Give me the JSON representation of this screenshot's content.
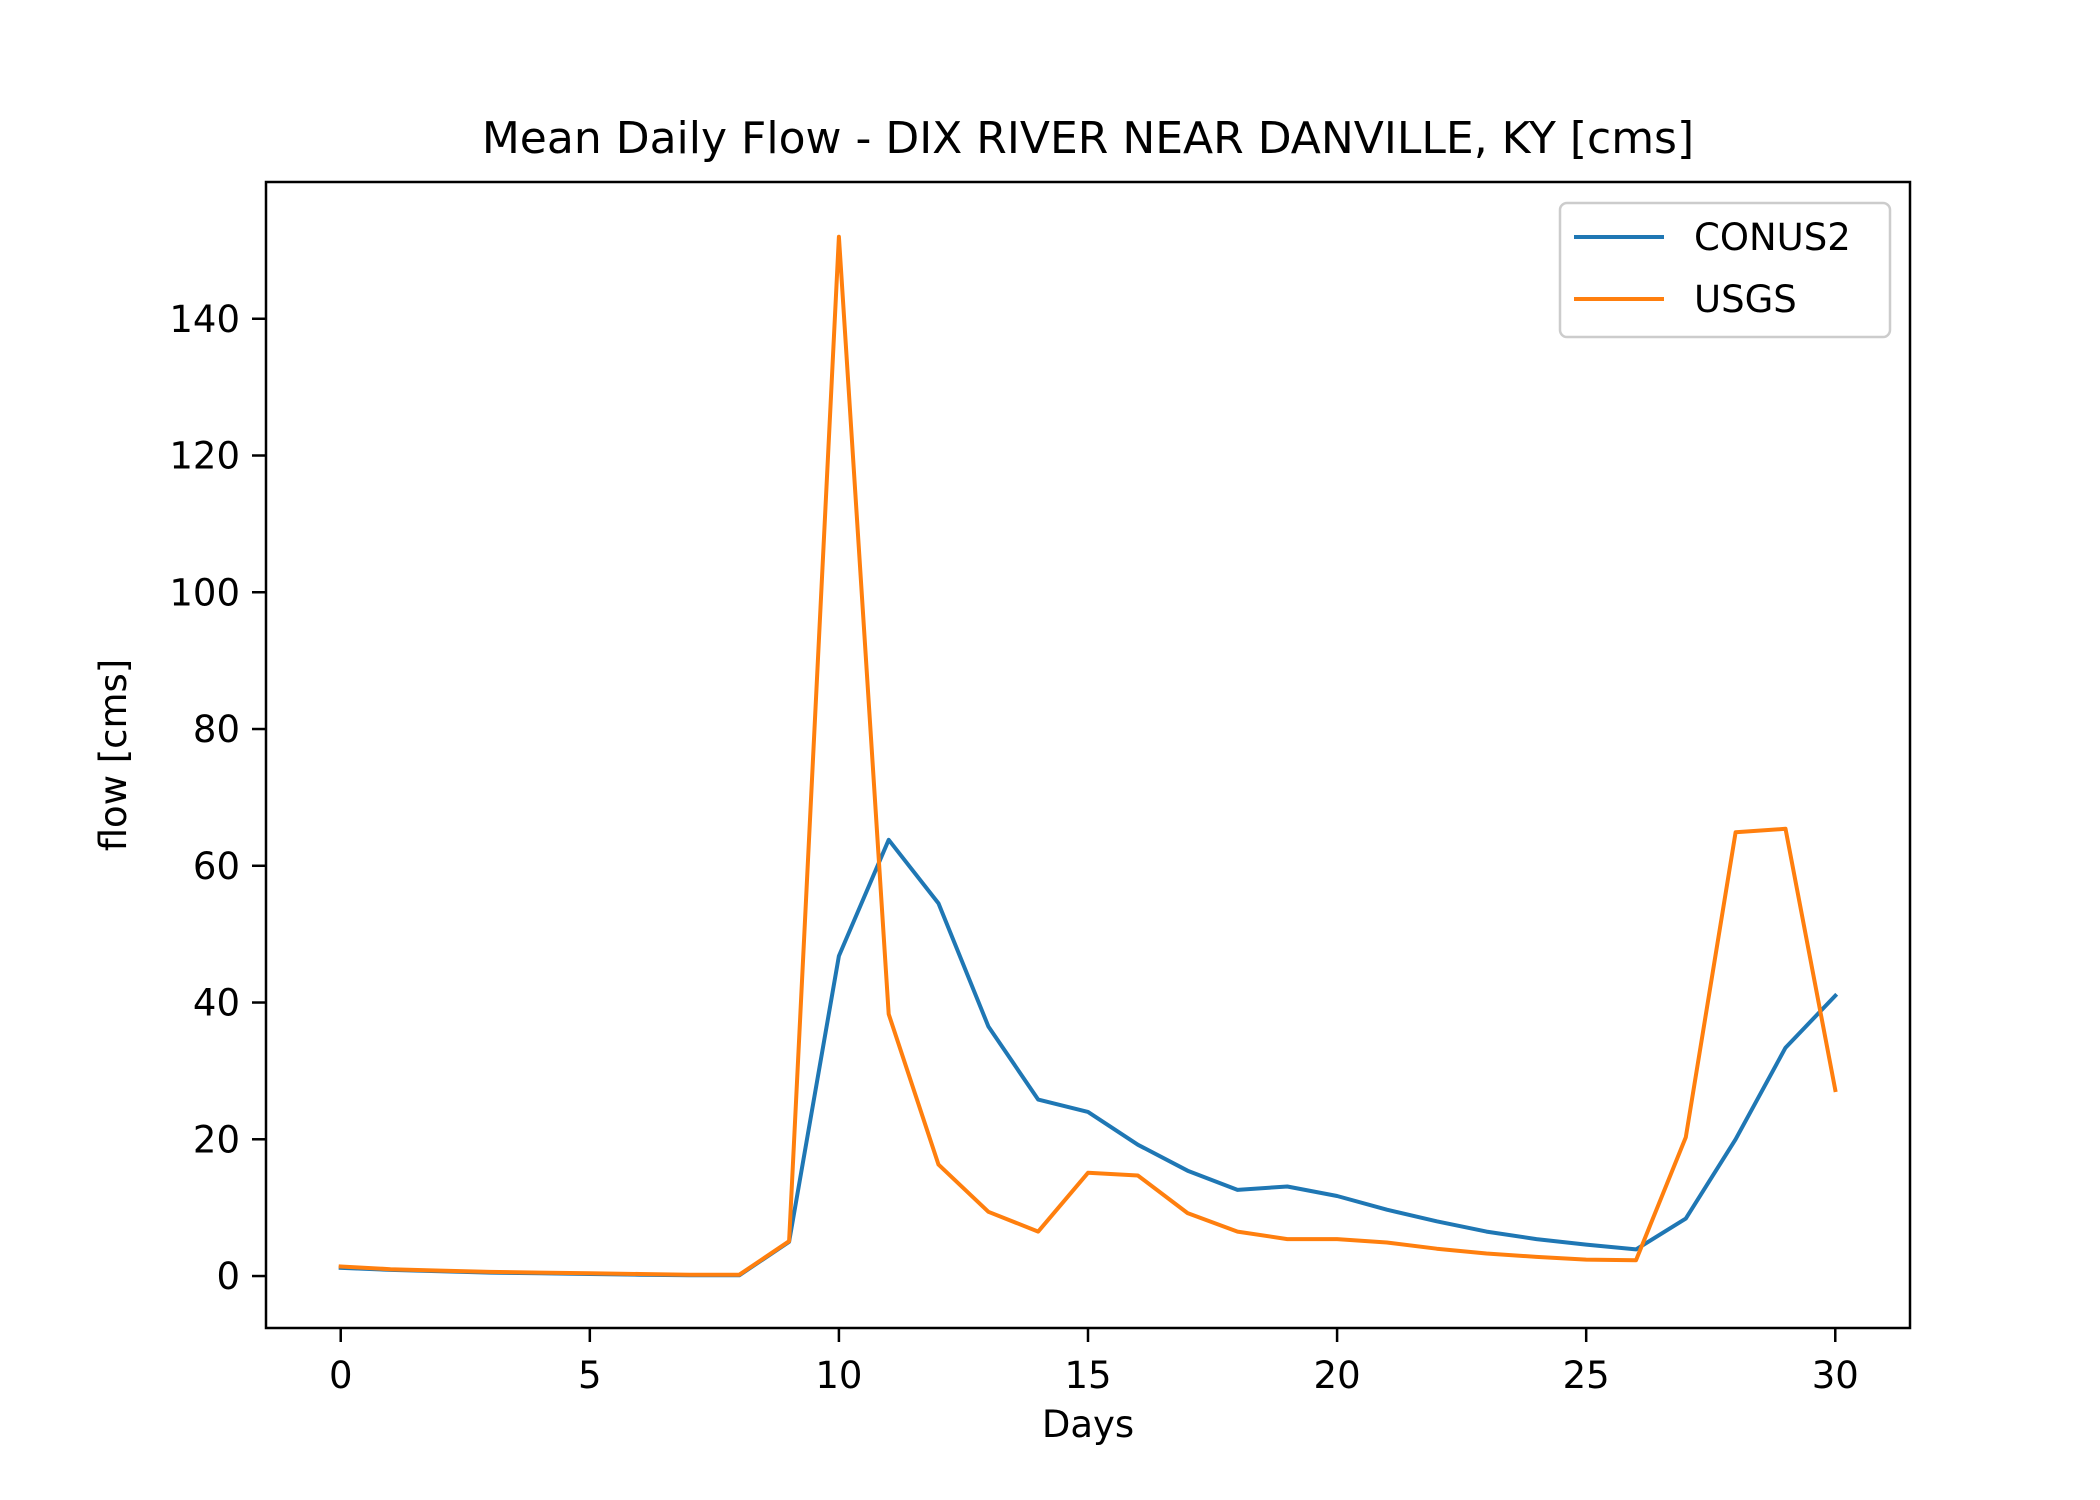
{
  "chart_data": {
    "type": "line",
    "title": "Mean Daily Flow - DIX RIVER NEAR DANVILLE, KY [cms]",
    "xlabel": "Days",
    "ylabel": "flow [cms]",
    "xlim": [
      -1.5,
      31.5
    ],
    "ylim": [
      -7.6,
      160
    ],
    "xticks": [
      0,
      5,
      10,
      15,
      20,
      25,
      30
    ],
    "yticks": [
      0,
      20,
      40,
      60,
      80,
      100,
      120,
      140
    ],
    "grid": false,
    "legend_position": "upper right",
    "x": [
      0,
      1,
      2,
      3,
      4,
      5,
      6,
      7,
      8,
      9,
      10,
      11,
      12,
      13,
      14,
      15,
      16,
      17,
      18,
      19,
      20,
      21,
      22,
      23,
      24,
      25,
      26,
      27,
      28,
      29,
      30
    ],
    "series": [
      {
        "name": "CONUS2",
        "color": "#1f77b4",
        "values": [
          1.2,
          0.9,
          0.7,
          0.5,
          0.4,
          0.3,
          0.2,
          0.1,
          0.1,
          5.0,
          46.8,
          63.8,
          54.5,
          36.5,
          25.8,
          24.0,
          19.2,
          15.4,
          12.6,
          13.1,
          11.7,
          9.7,
          8.0,
          6.5,
          5.4,
          4.6,
          3.9,
          8.4,
          20.0,
          33.4,
          41.0
        ]
      },
      {
        "name": "USGS",
        "color": "#ff7f0e",
        "values": [
          1.4,
          1.0,
          0.8,
          0.6,
          0.5,
          0.4,
          0.3,
          0.2,
          0.2,
          5.1,
          152.0,
          38.3,
          16.3,
          9.4,
          6.5,
          15.1,
          14.7,
          9.2,
          6.5,
          5.4,
          5.4,
          4.9,
          4.0,
          3.3,
          2.8,
          2.4,
          2.3,
          20.3,
          64.9,
          65.4,
          27.2
        ]
      }
    ]
  }
}
